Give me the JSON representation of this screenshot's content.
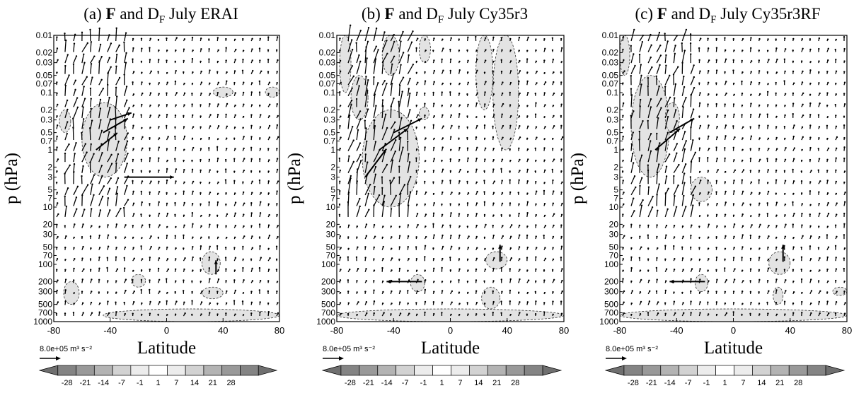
{
  "chart_data": [
    {
      "type": "vector_contour",
      "title_prefix": "(a) ",
      "title_bold": "F",
      "title_mid": " and D",
      "title_sub": "F",
      "title_suffix": " July ERAI",
      "ylabel": "p (hPa)",
      "xlabel": "Latitude",
      "reference_vector": "8.0e+05 m³ s⁻²",
      "xlim": [
        -80,
        80
      ],
      "xticks": [
        "-80",
        "-40",
        "0",
        "40",
        "80"
      ],
      "yscale": "log",
      "ylim_hpa": [
        1000,
        0.01
      ],
      "yticks": [
        "0.01",
        "0.02",
        "0.03",
        "0.05",
        "0.07",
        "0.1",
        "0.2",
        "0.3",
        "0.5",
        "0.7",
        "1",
        "2",
        "3",
        "5",
        "7",
        "10",
        "20",
        "30",
        "50",
        "70",
        "100",
        "200",
        "300",
        "500",
        "700",
        "1000"
      ],
      "shaded_regions": [
        {
          "lat": [
            -60,
            -28
          ],
          "p": [
            0.15,
            3
          ]
        },
        {
          "lat": [
            -76,
            -68
          ],
          "p": [
            0.2,
            0.5
          ]
        },
        {
          "lat": [
            -73,
            -62
          ],
          "p": [
            200,
            500
          ]
        },
        {
          "lat": [
            -25,
            -15
          ],
          "p": [
            150,
            250
          ]
        },
        {
          "lat": [
            25,
            38
          ],
          "p": [
            60,
            150
          ]
        },
        {
          "lat": [
            25,
            40
          ],
          "p": [
            250,
            400
          ]
        },
        {
          "lat": [
            -45,
            80
          ],
          "p": [
            600,
            1000
          ]
        },
        {
          "lat": [
            33,
            47
          ],
          "p": [
            0.08,
            0.12
          ]
        },
        {
          "lat": [
            70,
            80
          ],
          "p": [
            0.08,
            0.12
          ]
        }
      ],
      "prominent_vectors": [
        {
          "lat": -50,
          "p": 1,
          "u": 6,
          "v": 1.2
        },
        {
          "lat": -45,
          "p": 0.5,
          "u": 7,
          "v": 1
        },
        {
          "lat": -40,
          "p": 0.3,
          "u": 6,
          "v": 0.5
        },
        {
          "lat": -30,
          "p": 3,
          "u": 14,
          "v": 0
        },
        {
          "lat": 35,
          "p": 150,
          "u": 0,
          "v": 1
        }
      ]
    },
    {
      "type": "vector_contour",
      "title_prefix": "(b) ",
      "title_bold": "F",
      "title_mid": " and D",
      "title_sub": "F",
      "title_suffix": " July Cy35r3",
      "ylabel": "p (hPa)",
      "xlabel": "Latitude",
      "reference_vector": "8.0e+05 m³ s⁻²",
      "xlim": [
        -80,
        80
      ],
      "xticks": [
        "-80",
        "-40",
        "0",
        "40",
        "80"
      ],
      "yscale": "log",
      "ylim_hpa": [
        1000,
        0.01
      ],
      "yticks": [
        "0.01",
        "0.02",
        "0.03",
        "0.05",
        "0.07",
        "0.1",
        "0.2",
        "0.3",
        "0.5",
        "0.7",
        "1",
        "2",
        "3",
        "5",
        "7",
        "10",
        "20",
        "30",
        "50",
        "70",
        "100",
        "200",
        "300",
        "500",
        "700",
        "1000"
      ],
      "shaded_regions": [
        {
          "lat": [
            -78,
            -70
          ],
          "p": [
            0.01,
            0.1
          ]
        },
        {
          "lat": [
            -70,
            -58
          ],
          "p": [
            0.05,
            0.3
          ]
        },
        {
          "lat": [
            -62,
            -22
          ],
          "p": [
            0.2,
            10
          ]
        },
        {
          "lat": [
            -48,
            -36
          ],
          "p": [
            0.01,
            0.05
          ]
        },
        {
          "lat": [
            -22,
            -14
          ],
          "p": [
            0.01,
            0.03
          ]
        },
        {
          "lat": [
            18,
            30
          ],
          "p": [
            0.01,
            0.2
          ]
        },
        {
          "lat": [
            30,
            48
          ],
          "p": [
            0.01,
            1
          ]
        },
        {
          "lat": [
            -22,
            -15
          ],
          "p": [
            0.18,
            0.3
          ]
        },
        {
          "lat": [
            -28,
            -18
          ],
          "p": [
            150,
            300
          ]
        },
        {
          "lat": [
            25,
            40
          ],
          "p": [
            60,
            120
          ]
        },
        {
          "lat": [
            22,
            35
          ],
          "p": [
            250,
            600
          ]
        },
        {
          "lat": [
            -80,
            80
          ],
          "p": [
            600,
            1000
          ]
        }
      ],
      "prominent_vectors": [
        {
          "lat": -60,
          "p": 3,
          "u": 6,
          "v": 2
        },
        {
          "lat": -50,
          "p": 1,
          "u": 8,
          "v": 1.5
        },
        {
          "lat": -40,
          "p": 0.5,
          "u": 8,
          "v": 1
        },
        {
          "lat": -20,
          "p": 200,
          "u": -10,
          "v": 0
        },
        {
          "lat": 35,
          "p": 90,
          "u": 0,
          "v": 1.2
        }
      ]
    },
    {
      "type": "vector_contour",
      "title_prefix": "(c) ",
      "title_bold": "F",
      "title_mid": " and D",
      "title_sub": "F",
      "title_suffix": " July Cy35r3RF",
      "ylabel": "p (hPa)",
      "xlabel": "Latitude",
      "reference_vector": "8.0e+05 m³ s⁻²",
      "xlim": [
        -80,
        80
      ],
      "xticks": [
        "-80",
        "-40",
        "0",
        "40",
        "80"
      ],
      "yscale": "log",
      "ylim_hpa": [
        1000,
        0.01
      ],
      "yticks": [
        "0.01",
        "0.02",
        "0.03",
        "0.05",
        "0.07",
        "0.1",
        "0.2",
        "0.3",
        "0.5",
        "0.7",
        "1",
        "2",
        "3",
        "5",
        "7",
        "10",
        "20",
        "30",
        "50",
        "70",
        "100",
        "200",
        "300",
        "500",
        "700",
        "1000"
      ],
      "shaded_regions": [
        {
          "lat": [
            -80,
            -73
          ],
          "p": [
            0.01,
            0.05
          ]
        },
        {
          "lat": [
            -72,
            -45
          ],
          "p": [
            0.05,
            3
          ]
        },
        {
          "lat": [
            -48,
            -38
          ],
          "p": [
            0.15,
            0.5
          ]
        },
        {
          "lat": [
            -30,
            -15
          ],
          "p": [
            3,
            8
          ]
        },
        {
          "lat": [
            -27,
            -18
          ],
          "p": [
            150,
            300
          ]
        },
        {
          "lat": [
            25,
            40
          ],
          "p": [
            60,
            150
          ]
        },
        {
          "lat": [
            28,
            35
          ],
          "p": [
            250,
            500
          ]
        },
        {
          "lat": [
            70,
            80
          ],
          "p": [
            250,
            350
          ]
        },
        {
          "lat": [
            -80,
            80
          ],
          "p": [
            600,
            1000
          ]
        }
      ],
      "prominent_vectors": [
        {
          "lat": -55,
          "p": 1,
          "u": 7,
          "v": 1.5
        },
        {
          "lat": -45,
          "p": 0.5,
          "u": 7,
          "v": 1
        },
        {
          "lat": -20,
          "p": 200,
          "u": -10,
          "v": 0
        },
        {
          "lat": 35,
          "p": 90,
          "u": 0,
          "v": 1.2
        }
      ]
    }
  ],
  "colorbar": {
    "labels": [
      "-28",
      "-21",
      "-14",
      "-7",
      "-1",
      "1",
      "7",
      "14",
      "21",
      "28"
    ],
    "colors": [
      "#6f6f6f",
      "#848484",
      "#999999",
      "#b3b3b3",
      "#d2d2d2",
      "#ececec",
      "#ffffff",
      "#ececec",
      "#d2d2d2",
      "#b3b3b3",
      "#999999",
      "#848484",
      "#6f6f6f"
    ]
  }
}
